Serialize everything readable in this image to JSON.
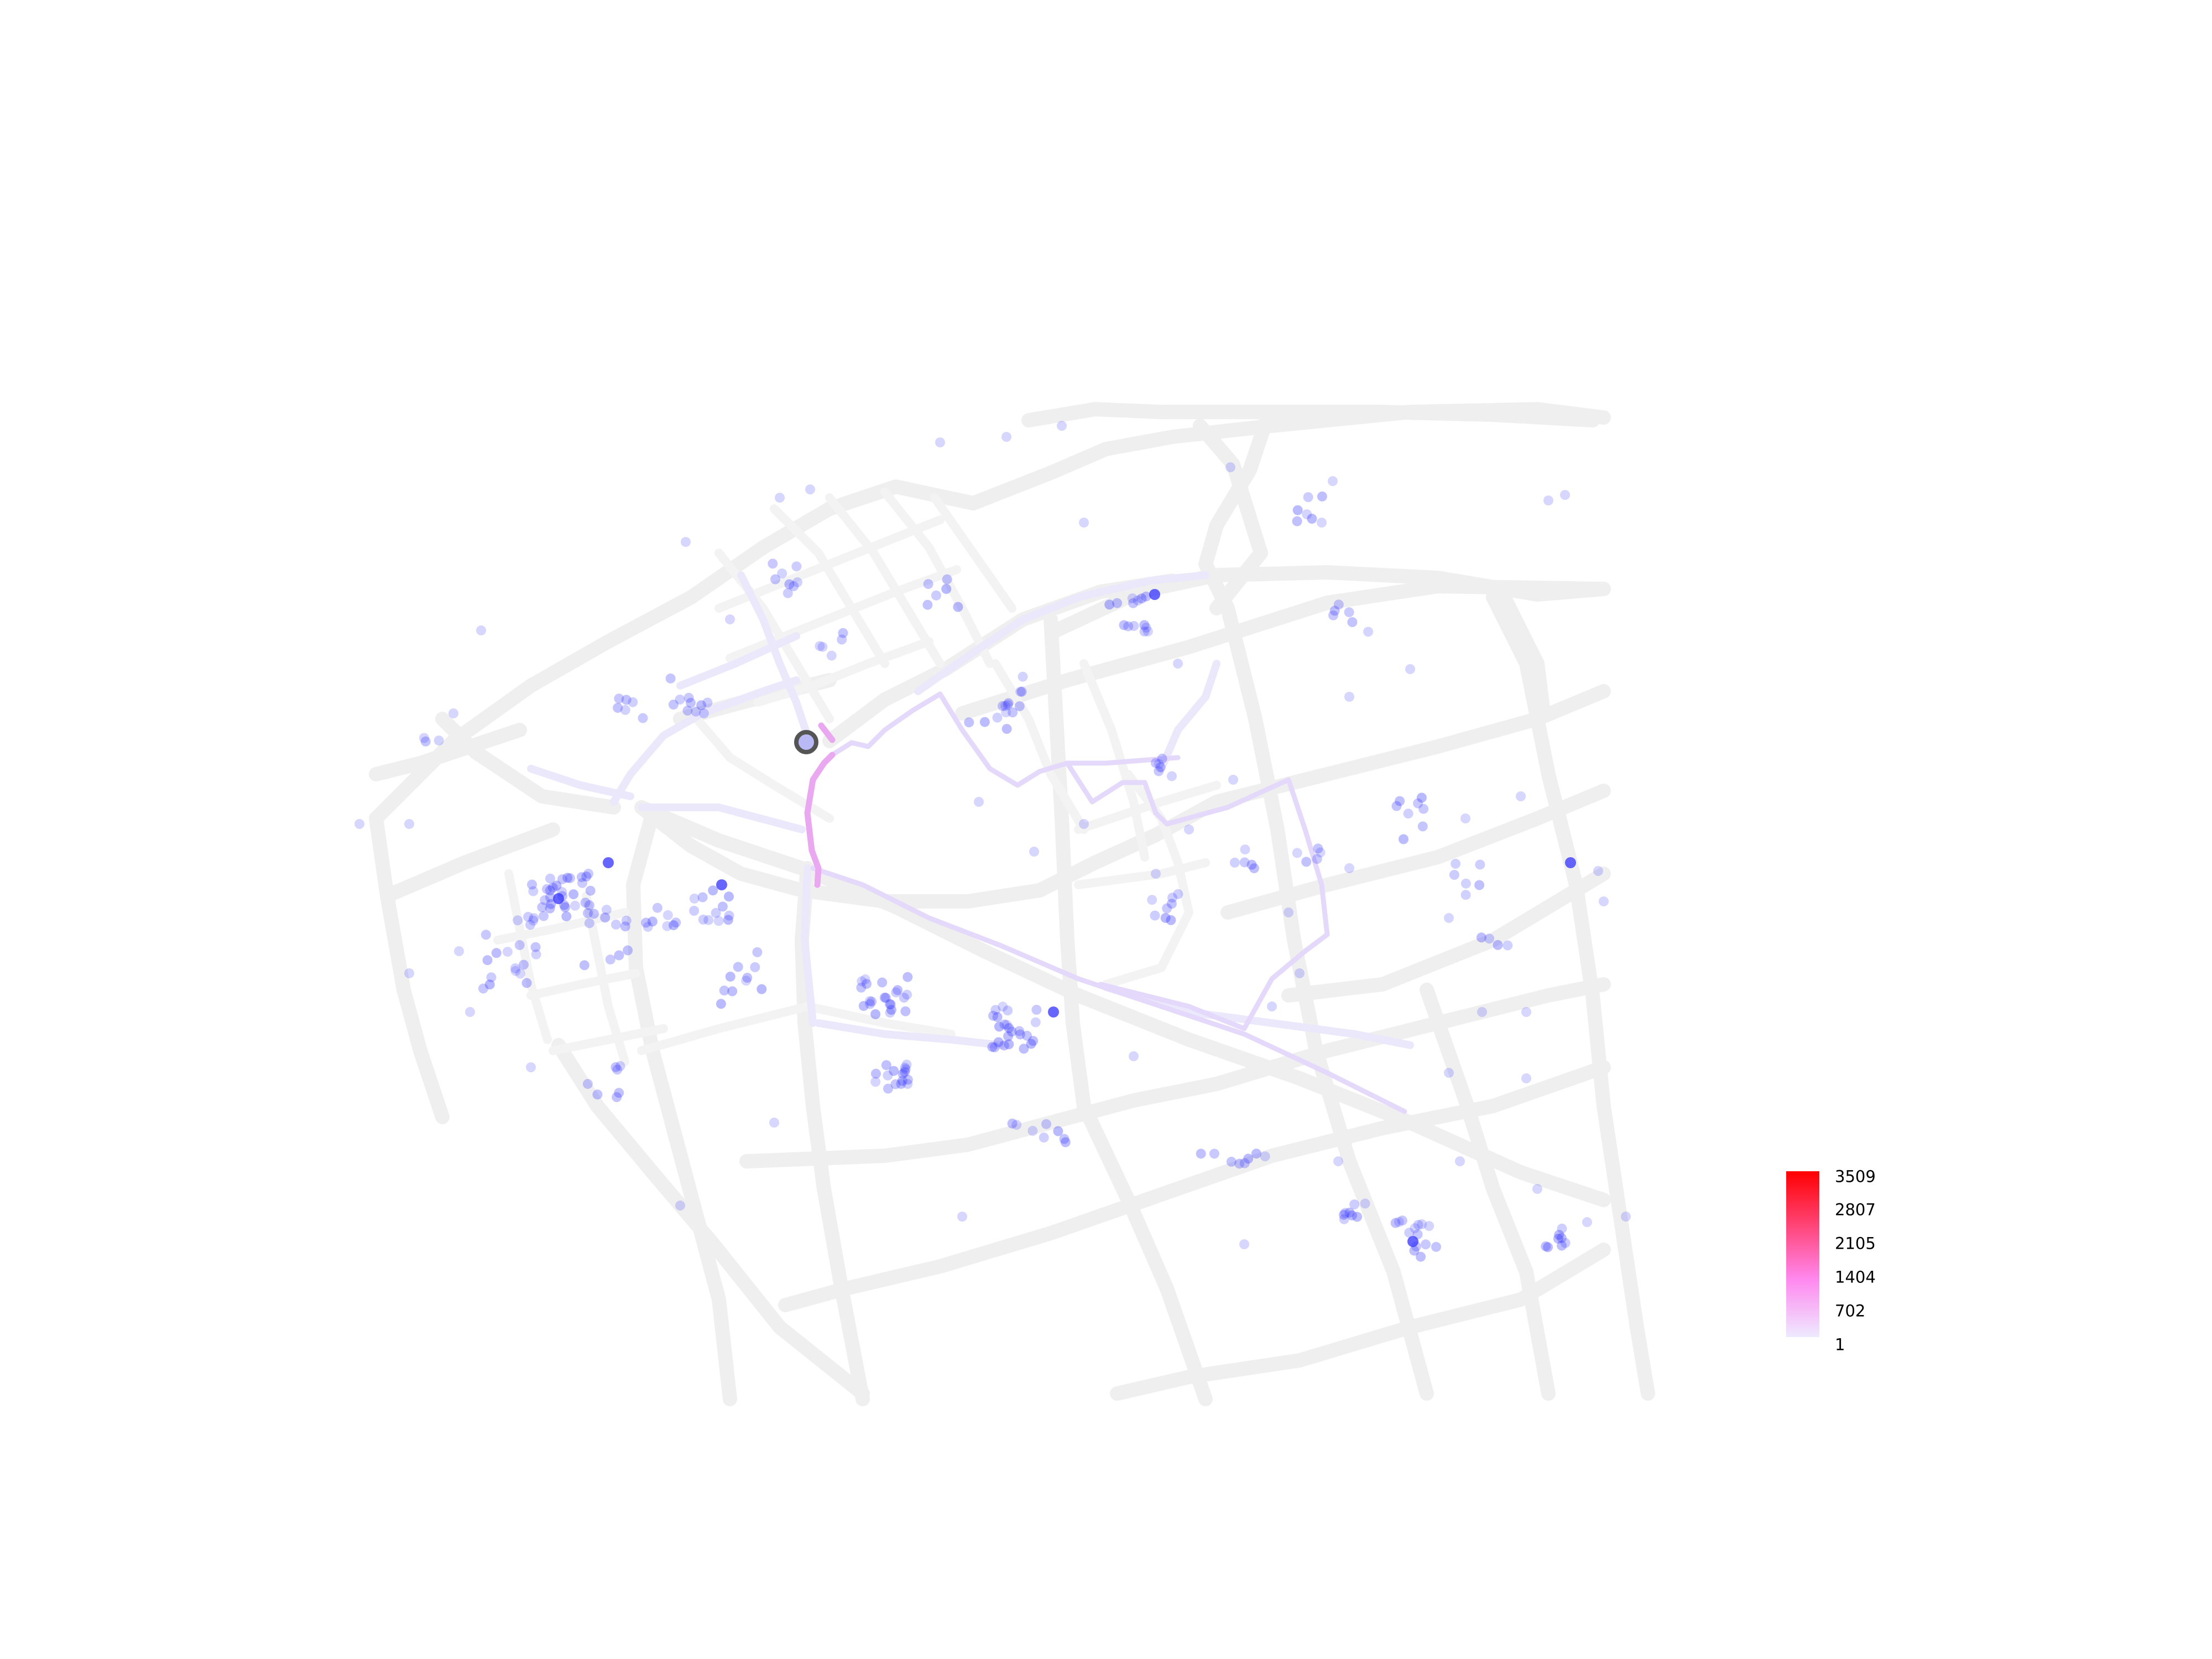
{
  "map": {
    "road_color": "#ededed",
    "marker_color": "#3333ff",
    "selected_marker_color": "#555555",
    "route_color_low": "#e4d8fb",
    "route_color_high": "#ff00cc"
  },
  "legend": {
    "gradient": [
      "#eeeaff",
      "#ff88ee",
      "#ff0000"
    ],
    "ticks": [
      "3509",
      "2807",
      "2105",
      "1404",
      "702",
      "1"
    ]
  }
}
